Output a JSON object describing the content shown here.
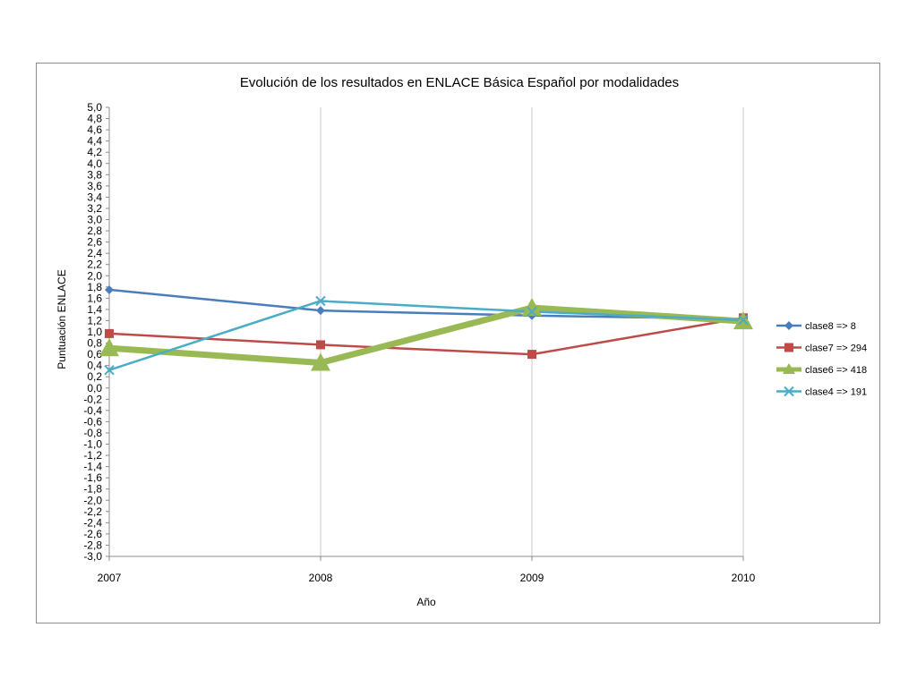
{
  "chart_data": {
    "type": "line",
    "title": "Evolución de los resultados en ENLACE Básica Español por modalidades",
    "xlabel": "Año",
    "ylabel": "Puntuación ENLACE",
    "categories": [
      "2007",
      "2008",
      "2009",
      "2010"
    ],
    "ylim": [
      -3.0,
      5.0
    ],
    "ytick_step": 0.2,
    "grid": "vertical",
    "legend_position": "right",
    "series": [
      {
        "name": "clase8 => 8",
        "values": [
          1.75,
          1.38,
          1.29,
          1.23
        ],
        "color": "#4a7ebb",
        "marker": "diamond",
        "width": 2.5
      },
      {
        "name": "clase7 => 294",
        "values": [
          0.97,
          0.77,
          0.6,
          1.25
        ],
        "color": "#be4b48",
        "marker": "square",
        "width": 2.5
      },
      {
        "name": "clase6 => 418",
        "values": [
          0.71,
          0.45,
          1.43,
          1.19
        ],
        "color": "#98b954",
        "marker": "triangle",
        "width": 7
      },
      {
        "name": "clase4 => 191",
        "values": [
          0.32,
          1.55,
          1.36,
          1.21
        ],
        "color": "#4bacc6",
        "marker": "x",
        "width": 2.5
      }
    ]
  }
}
